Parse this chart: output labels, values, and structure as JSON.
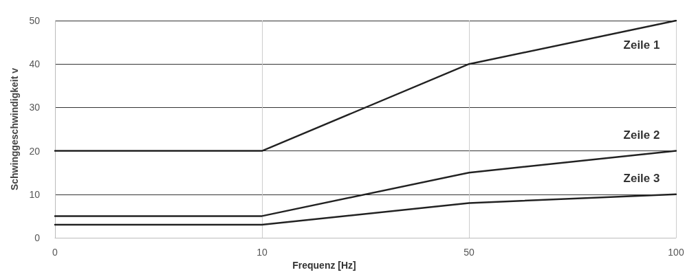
{
  "chart_data": {
    "type": "line",
    "xlabel": "Frequenz [Hz]",
    "ylabel": "Schwinggeschwindigkeit v",
    "categories": [
      "0",
      "10",
      "50",
      "100"
    ],
    "series": [
      {
        "name": "Zeile 1",
        "color": "#222222",
        "values": [
          20,
          20,
          40,
          50
        ]
      },
      {
        "name": "Zeile 2",
        "color": "#222222",
        "values": [
          5,
          5,
          15,
          20
        ]
      },
      {
        "name": "Zeile 3",
        "color": "#222222",
        "values": [
          3,
          3,
          8,
          10
        ]
      }
    ],
    "ylim": [
      0,
      50
    ],
    "yticks": [
      0,
      10,
      20,
      30,
      40,
      50
    ],
    "grid": true,
    "legend": false,
    "marker": "none",
    "line_style": "solid"
  }
}
